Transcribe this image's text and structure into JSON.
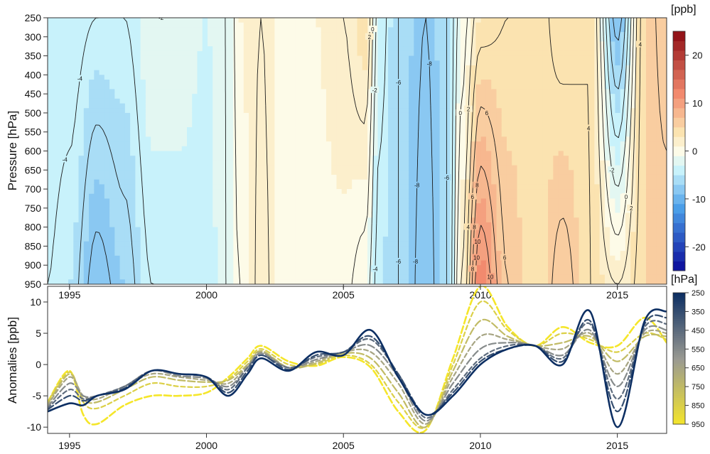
{
  "chart_data": [
    {
      "type": "heatmap",
      "ylabel": "Pressure [hPa]",
      "colorbar_label": "[ppb]",
      "x_ticks": [
        1995,
        2000,
        2005,
        2010,
        2015
      ],
      "xlim": [
        1994.2,
        2016.8
      ],
      "y_ticks": [
        250,
        300,
        350,
        400,
        450,
        500,
        550,
        600,
        650,
        700,
        750,
        800,
        850,
        900,
        950
      ],
      "ylim": [
        950,
        250
      ],
      "colorbar_ticks": [
        20,
        10,
        0,
        -10,
        -20
      ],
      "colorbar_range": [
        -25,
        25
      ],
      "colors": {
        "neg_strong": "#0a0a9a",
        "neg_mid": "#4b9ee8",
        "neg_weak": "#c8f2fb",
        "zero": "#fdfbe8",
        "pos_weak": "#fbe3b0",
        "pos_mid": "#f28a6e",
        "pos_strong": "#8b0a12"
      },
      "contour_labels": [
        "-6",
        "-4",
        "-2",
        "0",
        "2",
        "4",
        "6",
        "8",
        "-8",
        "10",
        "-10"
      ],
      "anomaly_columns": [
        {
          "x": 1994.2,
          "top": -3,
          "bottom": -4
        },
        {
          "x": 1995.0,
          "top": -3,
          "bottom": -5
        },
        {
          "x": 1996.0,
          "top": -4,
          "bottom": -9
        },
        {
          "x": 1997.0,
          "top": -4,
          "bottom": -7
        },
        {
          "x": 1998.0,
          "top": -2,
          "bottom": -4
        },
        {
          "x": 1999.0,
          "top": -2,
          "bottom": -4
        },
        {
          "x": 2000.0,
          "top": -3,
          "bottom": -4
        },
        {
          "x": 2000.7,
          "top": -2,
          "bottom": -2
        },
        {
          "x": 2001.2,
          "top": 1,
          "bottom": 0
        },
        {
          "x": 2002.0,
          "top": 2,
          "bottom": 2.5
        },
        {
          "x": 2003.0,
          "top": 0,
          "bottom": 0
        },
        {
          "x": 2004.0,
          "top": 1,
          "bottom": 0.5
        },
        {
          "x": 2005.0,
          "top": 2,
          "bottom": 0.5
        },
        {
          "x": 2005.8,
          "top": 4,
          "bottom": -1
        },
        {
          "x": 2006.3,
          "top": -3,
          "bottom": -5
        },
        {
          "x": 2007.0,
          "top": -6,
          "bottom": -6
        },
        {
          "x": 2008.0,
          "top": -8,
          "bottom": -9
        },
        {
          "x": 2008.8,
          "top": -6,
          "bottom": -6
        },
        {
          "x": 2009.3,
          "top": -1,
          "bottom": 2
        },
        {
          "x": 2010.0,
          "top": 3,
          "bottom": 12
        },
        {
          "x": 2011.0,
          "top": 4,
          "bottom": 6
        },
        {
          "x": 2012.0,
          "top": 5,
          "bottom": 4
        },
        {
          "x": 2013.0,
          "top": 3,
          "bottom": 7
        },
        {
          "x": 2014.0,
          "top": 4,
          "bottom": 4
        },
        {
          "x": 2015.0,
          "top": -9,
          "bottom": 2
        },
        {
          "x": 2016.0,
          "top": 5,
          "bottom": 5
        },
        {
          "x": 2016.8,
          "top": 7,
          "bottom": 5
        }
      ]
    },
    {
      "type": "line",
      "ylabel": "Anomalies [ppb]",
      "x_ticks": [
        1995,
        2000,
        2005,
        2010,
        2015
      ],
      "xlim": [
        1994.2,
        2016.8
      ],
      "y_ticks": [
        -10,
        -5,
        0,
        5,
        10
      ],
      "ylim": [
        -11,
        12.5
      ],
      "legend_title": "[hPa]",
      "legend_ticks": [
        250,
        350,
        450,
        550,
        650,
        750,
        850,
        950
      ],
      "colors": {
        "top_level": "#0d2f63",
        "middle_level": "#9a9a92",
        "bottom_level": "#f5e62a"
      },
      "x": [
        1994.2,
        1995.0,
        1995.5,
        1996.0,
        1997.0,
        1998.0,
        1999.0,
        2000.0,
        2000.8,
        2001.5,
        2002.0,
        2003.0,
        2004.0,
        2005.0,
        2006.0,
        2007.0,
        2008.0,
        2009.0,
        2010.0,
        2011.0,
        2012.0,
        2013.0,
        2014.0,
        2015.0,
        2016.0,
        2016.8
      ],
      "series": [
        {
          "level": 250,
          "values": [
            -7.5,
            -6.2,
            -6.5,
            -5,
            -4,
            -1,
            -1.5,
            -2,
            -5,
            -1.5,
            1,
            -1,
            2,
            1.5,
            5.5,
            -2,
            -8,
            -5,
            0,
            2.5,
            3,
            0,
            8.5,
            -10,
            7,
            8.5
          ]
        },
        {
          "level": 350,
          "values": [
            -7.2,
            -5,
            -5.8,
            -5,
            -3.8,
            -1,
            -1.5,
            -2,
            -4.5,
            -1,
            1.5,
            -0.8,
            1.5,
            2,
            4.5,
            -1.5,
            -8,
            -4.5,
            0.5,
            2.5,
            3,
            0.5,
            7,
            -7.5,
            6.5,
            7.5
          ]
        },
        {
          "level": 450,
          "values": [
            -7,
            -4,
            -5.5,
            -5,
            -3.5,
            -1,
            -1.5,
            -2,
            -4,
            -0.5,
            1.5,
            -0.5,
            1.2,
            2,
            4,
            -1.5,
            -8.5,
            -4,
            1,
            3,
            3,
            1,
            6.5,
            -5.5,
            6,
            6.5
          ]
        },
        {
          "level": 550,
          "values": [
            -6.8,
            -3,
            -5,
            -5,
            -3.5,
            -1,
            -1.8,
            -2.2,
            -3.5,
            -0.5,
            1.8,
            -0.5,
            0.8,
            2,
            3,
            -2,
            -9,
            -3,
            2.5,
            3.5,
            3,
            1.5,
            5.5,
            -3.5,
            5.5,
            5.5
          ]
        },
        {
          "level": 650,
          "values": [
            -6.5,
            -2,
            -5,
            -5.5,
            -3.5,
            -1.5,
            -2,
            -2.5,
            -3,
            -0.2,
            2,
            -0.5,
            0.5,
            2,
            2,
            -3,
            -9.5,
            -2,
            4.5,
            4,
            3,
            2.5,
            5,
            -1.5,
            5,
            5
          ]
        },
        {
          "level": 750,
          "values": [
            -6.3,
            -1.5,
            -5.5,
            -6,
            -4,
            -2,
            -2.5,
            -2.8,
            -2.5,
            0,
            2.2,
            -0.5,
            0.2,
            1.8,
            1,
            -4.5,
            -10,
            -1,
            7,
            4.5,
            3,
            3.5,
            4.5,
            0.5,
            4.5,
            4.5
          ]
        },
        {
          "level": 850,
          "values": [
            -6,
            -1.2,
            -6,
            -7,
            -5,
            -3,
            -3.5,
            -3.5,
            -2.3,
            0.5,
            2.5,
            0,
            0,
            1.5,
            0,
            -6,
            -10,
            0,
            10,
            5.5,
            3,
            5,
            4,
            2,
            5,
            4
          ]
        },
        {
          "level": 950,
          "values": [
            -6,
            -1,
            -8,
            -9.5,
            -6.5,
            -5,
            -5,
            -4.5,
            -2,
            1,
            3,
            0.5,
            -0.2,
            1.2,
            -0.5,
            -7.5,
            -10.5,
            1,
            12.5,
            6,
            3,
            6,
            3.5,
            3,
            7.5,
            3.5
          ]
        }
      ]
    }
  ]
}
